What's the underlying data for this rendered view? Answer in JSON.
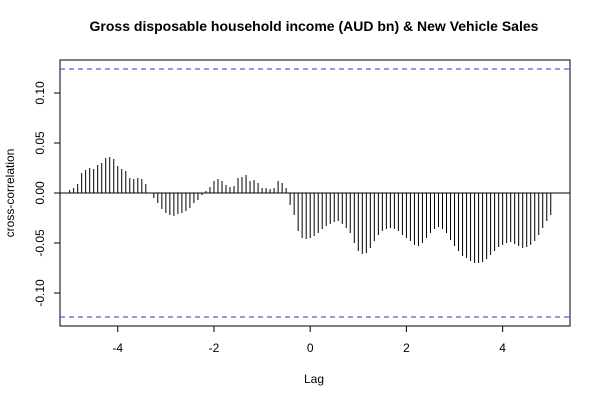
{
  "chart_data": {
    "type": "bar",
    "title": "Gross disposable household income (AUD bn) & New Vehicle Sales",
    "xlabel": "Lag",
    "ylabel": "cross-correlation",
    "xlim": [
      -5.2,
      5.4
    ],
    "ylim": [
      -0.133,
      0.133
    ],
    "x_ticks": [
      -4,
      -2,
      0,
      2,
      4
    ],
    "x_tick_labels": [
      "-4",
      "-2",
      "0",
      "2",
      "4"
    ],
    "y_ticks": [
      -0.1,
      -0.05,
      0.0,
      0.05,
      0.1
    ],
    "y_tick_labels": [
      "-0.10",
      "-0.05",
      "0.00",
      "0.05",
      "0.10"
    ],
    "confidence_bound": 0.124,
    "colors": {
      "bars": "#000000",
      "zero_line": "#000000",
      "ci_line": "#5b5bd6"
    },
    "x": [
      -5.0,
      -4.917,
      -4.833,
      -4.75,
      -4.667,
      -4.583,
      -4.5,
      -4.417,
      -4.333,
      -4.25,
      -4.167,
      -4.083,
      -4.0,
      -3.917,
      -3.833,
      -3.75,
      -3.667,
      -3.583,
      -3.5,
      -3.417,
      -3.333,
      -3.25,
      -3.167,
      -3.083,
      -3.0,
      -2.917,
      -2.833,
      -2.75,
      -2.667,
      -2.583,
      -2.5,
      -2.417,
      -2.333,
      -2.25,
      -2.167,
      -2.083,
      -2.0,
      -1.917,
      -1.833,
      -1.75,
      -1.667,
      -1.583,
      -1.5,
      -1.417,
      -1.333,
      -1.25,
      -1.167,
      -1.083,
      -1.0,
      -0.917,
      -0.833,
      -0.75,
      -0.667,
      -0.583,
      -0.5,
      -0.417,
      -0.333,
      -0.25,
      -0.167,
      -0.083,
      0.0,
      0.083,
      0.167,
      0.25,
      0.333,
      0.417,
      0.5,
      0.583,
      0.667,
      0.75,
      0.833,
      0.917,
      1.0,
      1.083,
      1.167,
      1.25,
      1.333,
      1.417,
      1.5,
      1.583,
      1.667,
      1.75,
      1.833,
      1.917,
      2.0,
      2.083,
      2.167,
      2.25,
      2.333,
      2.417,
      2.5,
      2.583,
      2.667,
      2.75,
      2.833,
      2.917,
      3.0,
      3.083,
      3.167,
      3.25,
      3.333,
      3.417,
      3.5,
      3.583,
      3.667,
      3.75,
      3.833,
      3.917,
      4.0,
      4.083,
      4.167,
      4.25,
      4.333,
      4.417,
      4.5,
      4.583,
      4.667,
      4.75,
      4.833,
      4.917,
      5.0
    ],
    "values": [
      0.003,
      0.005,
      0.009,
      0.02,
      0.023,
      0.025,
      0.024,
      0.028,
      0.03,
      0.035,
      0.036,
      0.034,
      0.027,
      0.024,
      0.022,
      0.015,
      0.014,
      0.015,
      0.014,
      0.009,
      0.0,
      -0.005,
      -0.01,
      -0.016,
      -0.02,
      -0.022,
      -0.023,
      -0.021,
      -0.02,
      -0.018,
      -0.015,
      -0.01,
      -0.007,
      -0.002,
      0.002,
      0.006,
      0.012,
      0.014,
      0.012,
      0.008,
      0.006,
      0.007,
      0.015,
      0.016,
      0.018,
      0.012,
      0.013,
      0.01,
      0.005,
      0.005,
      0.004,
      0.005,
      0.012,
      0.01,
      0.005,
      -0.012,
      -0.022,
      -0.038,
      -0.045,
      -0.046,
      -0.045,
      -0.043,
      -0.04,
      -0.036,
      -0.033,
      -0.031,
      -0.029,
      -0.028,
      -0.031,
      -0.035,
      -0.04,
      -0.05,
      -0.058,
      -0.061,
      -0.06,
      -0.055,
      -0.048,
      -0.042,
      -0.038,
      -0.036,
      -0.035,
      -0.036,
      -0.038,
      -0.042,
      -0.045,
      -0.048,
      -0.052,
      -0.053,
      -0.05,
      -0.045,
      -0.04,
      -0.036,
      -0.034,
      -0.036,
      -0.04,
      -0.047,
      -0.053,
      -0.058,
      -0.063,
      -0.065,
      -0.068,
      -0.07,
      -0.07,
      -0.069,
      -0.066,
      -0.062,
      -0.058,
      -0.054,
      -0.052,
      -0.05,
      -0.049,
      -0.051,
      -0.053,
      -0.055,
      -0.054,
      -0.052,
      -0.048,
      -0.042,
      -0.035,
      -0.028,
      -0.022
    ]
  }
}
